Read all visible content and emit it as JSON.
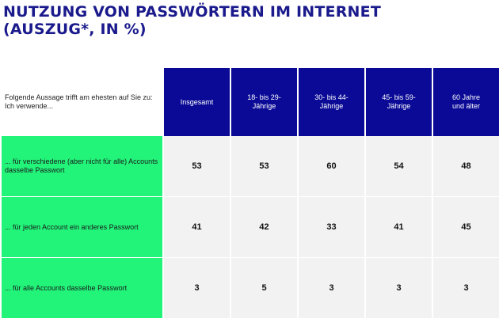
{
  "title_line1": "NUTZUNG VON PASSWÖRTERN IM INTERNET",
  "title_line2": "(AUSZUG*, IN %)",
  "chart_data": {
    "type": "table",
    "row_header": "Folgende Aussage trifft am ehesten auf Sie zu: Ich verwende...",
    "columns": [
      "Insgesamt",
      "18- bis 29-\nJährige",
      "30- bis 44-\nJährige",
      "45- bis 59-\nJährige",
      "60 Jahre\nund älter"
    ],
    "rows": [
      {
        "label": "... für verschiedene (aber nicht für alle) Accounts dasselbe Passwort",
        "values": [
          "53",
          "53",
          "60",
          "54",
          "48"
        ]
      },
      {
        "label": "... für jeden Account ein anderes Passwort",
        "values": [
          "41",
          "42",
          "33",
          "41",
          "45"
        ]
      },
      {
        "label": "... für alle Accounts dasselbe Passwort",
        "values": [
          "3",
          "5",
          "3",
          "3",
          "3"
        ]
      }
    ]
  },
  "colors": {
    "title": "#1a1a8c",
    "header_bg": "#0a0a96",
    "row_label_bg": "#22f47a",
    "cell_bg": "#f2f2f2"
  }
}
